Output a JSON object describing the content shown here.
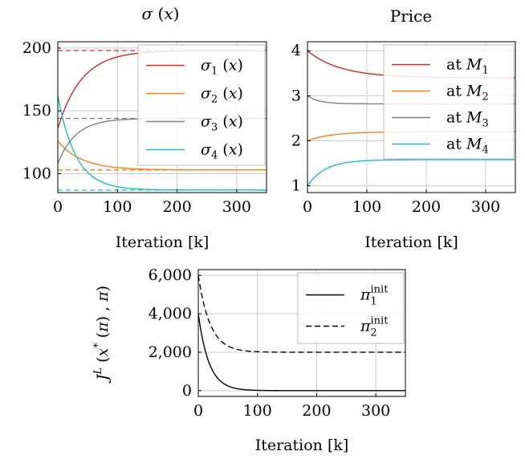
{
  "chart_data": [
    {
      "type": "line",
      "title": "σ (x)",
      "xlabel": "Iteration [k]",
      "ylabel": "",
      "xlim": [
        0,
        350
      ],
      "ylim": [
        85,
        205
      ],
      "xticks": [
        0,
        100,
        200,
        300
      ],
      "yticks": [
        100,
        150,
        200
      ],
      "grid": true,
      "legend_position": "top-right",
      "series": [
        {
          "name": "σ1 (x)",
          "color": "#d62728",
          "start": 136,
          "end": 198,
          "tau": 40,
          "target": 198
        },
        {
          "name": "σ2 (x)",
          "color": "#ff7f0e",
          "start": 126,
          "end": 103,
          "tau": 40,
          "target": 103
        },
        {
          "name": "σ3 (x)",
          "color": "#7f7f7f",
          "start": 108,
          "end": 144,
          "tau": 30,
          "target": 144
        },
        {
          "name": "σ4 (x)",
          "color": "#17becf",
          "start": 162,
          "end": 87,
          "tau": 30,
          "target": 87
        }
      ]
    },
    {
      "type": "line",
      "title": "Price",
      "xlabel": "Iteration [k]",
      "ylabel": "",
      "xlim": [
        0,
        350
      ],
      "ylim": [
        0.85,
        4.2
      ],
      "xticks": [
        0,
        100,
        200,
        300
      ],
      "yticks": [
        1,
        2,
        3,
        4
      ],
      "grid": true,
      "legend_position": "top-right",
      "series": [
        {
          "name": "at M1",
          "color": "#d62728",
          "start": 4.0,
          "end": 3.4,
          "tau": 55
        },
        {
          "name": "at M2",
          "color": "#ff7f0e",
          "start": 2.0,
          "end": 2.2,
          "tau": 40
        },
        {
          "name": "at M3",
          "color": "#7f7f7f",
          "start": 3.0,
          "end": 2.82,
          "tau": 20
        },
        {
          "name": "at M4",
          "color": "#17becf",
          "start": 1.0,
          "end": 1.58,
          "tau": 30
        }
      ]
    },
    {
      "type": "line",
      "title": "",
      "xlabel": "Iteration [k]",
      "ylabel": "J^L (x* (π) , π)",
      "xlim": [
        0,
        350
      ],
      "ylim": [
        -300,
        6300
      ],
      "xticks": [
        0,
        100,
        200,
        300
      ],
      "yticks": [
        0,
        2000,
        4000,
        6000
      ],
      "ytick_labels": [
        "0",
        "2,000",
        "4,000",
        "6,000"
      ],
      "grid": true,
      "legend_position": "top-right",
      "series": [
        {
          "name": "π1 init",
          "color": "#000000",
          "dash": "solid",
          "start": 4000,
          "end": 0,
          "tau": 18
        },
        {
          "name": "π2 init",
          "color": "#000000",
          "dash": "dashed",
          "start": 6000,
          "end": 2000,
          "tau": 20
        }
      ]
    }
  ],
  "legends": {
    "sigma": [
      {
        "base": "σ",
        "sub": "1",
        "rest": " (x)"
      },
      {
        "base": "σ",
        "sub": "2",
        "rest": " (x)"
      },
      {
        "base": "σ",
        "sub": "3",
        "rest": " (x)"
      },
      {
        "base": "σ",
        "sub": "4",
        "rest": " (x)"
      }
    ],
    "price": [
      {
        "prefix": "at ",
        "base": "M",
        "sub": "1"
      },
      {
        "prefix": "at ",
        "base": "M",
        "sub": "2"
      },
      {
        "prefix": "at ",
        "base": "M",
        "sub": "3"
      },
      {
        "prefix": "at ",
        "base": "M",
        "sub": "4"
      }
    ],
    "cost": [
      {
        "base": "π",
        "sub": "1",
        "sup": "init"
      },
      {
        "base": "π",
        "sub": "2",
        "sup": "init"
      }
    ]
  }
}
